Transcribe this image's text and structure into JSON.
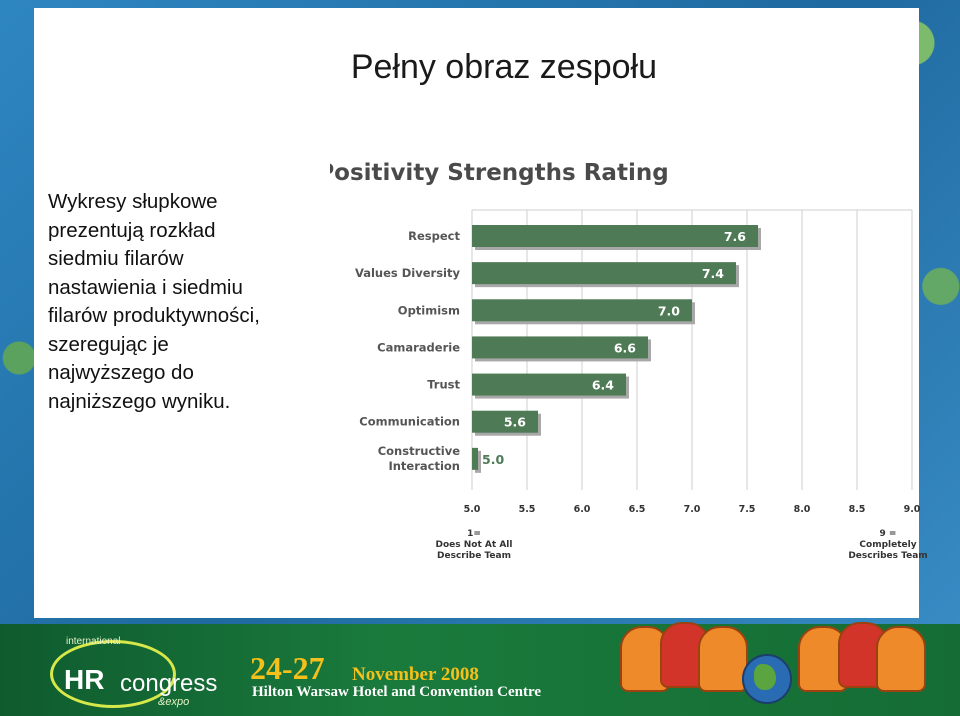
{
  "slide": {
    "title": "Pełny obraz zespołu",
    "body_lines": [
      "Wykresy  słupkowe",
      "prezentują rozkład",
      "siedmiu filarów",
      "nastawienia i  siedmiu",
      "filarów produktywności,",
      "szeregując je",
      "najwyższego  do",
      "najniższego wyniku."
    ]
  },
  "footer": {
    "logo_small": "international",
    "logo_hr": "HR",
    "logo_congress": "congress",
    "logo_expo": "&expo",
    "dates": "24-27",
    "month": "November 2008",
    "venue": "Hilton Warsaw Hotel and Convention Centre"
  },
  "chart_data": {
    "type": "bar",
    "orientation": "horizontal",
    "title": "Positivity Strengths Rating",
    "categories": [
      "Respect",
      "Values Diversity",
      "Optimism",
      "Camaraderie",
      "Trust",
      "Communication",
      "Constructive Interaction"
    ],
    "values": [
      7.6,
      7.4,
      7.0,
      6.6,
      6.4,
      5.6,
      5.0
    ],
    "value_labels": [
      "7.6",
      "7.4",
      "7.0",
      "6.6",
      "6.4",
      "5.6",
      "5.0"
    ],
    "xlim": [
      5.0,
      9.0
    ],
    "xticks": [
      5.0,
      5.5,
      6.0,
      6.5,
      7.0,
      7.5,
      8.0,
      8.5,
      9.0
    ],
    "xtick_labels": [
      "5.0",
      "5.5",
      "6.0",
      "6.5",
      "7.0",
      "7.5",
      "8.0",
      "8.5",
      "9.0"
    ],
    "scale_low_label": [
      "1=",
      "Does Not At All",
      "Describe Team"
    ],
    "scale_high_label": [
      "9 =",
      "Completely",
      "Describes Team"
    ],
    "grid": true,
    "bar_color": "#4e7a56",
    "bar_shadow_color": "#a8a8a8"
  }
}
